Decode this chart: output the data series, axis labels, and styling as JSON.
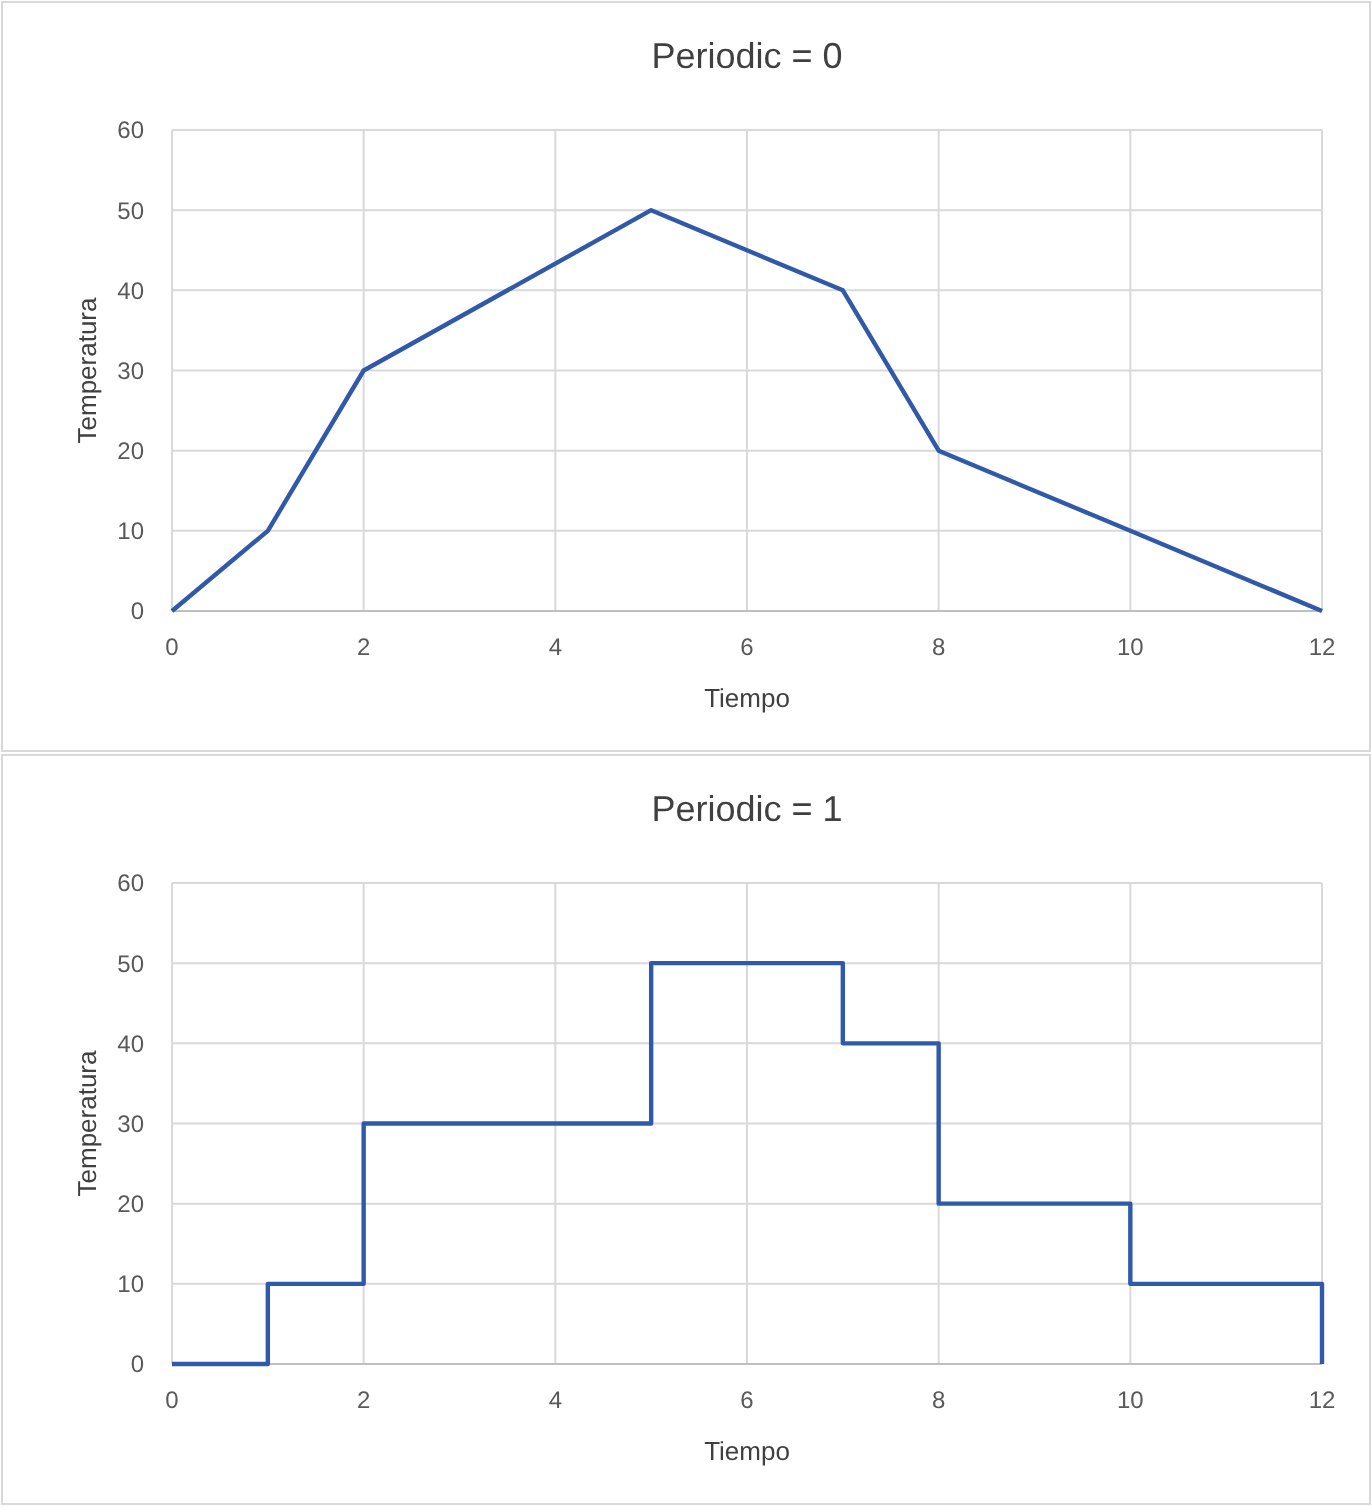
{
  "chart_data": [
    {
      "type": "line",
      "title": "Periodic = 0",
      "xlabel": "Tiempo",
      "ylabel": "Temperatura",
      "x": [
        0,
        1,
        2,
        5,
        7,
        8,
        10,
        12
      ],
      "series": [
        {
          "color": "#3059a9",
          "values": [
            0,
            10,
            30,
            50,
            40,
            20,
            10,
            0
          ]
        }
      ],
      "xlim": [
        0,
        12
      ],
      "ylim": [
        0,
        60
      ],
      "xticks": [
        0,
        2,
        4,
        6,
        8,
        10,
        12
      ],
      "yticks": [
        0,
        10,
        20,
        30,
        40,
        50,
        60
      ],
      "grid": true
    },
    {
      "type": "step",
      "title": "Periodic = 1",
      "xlabel": "Tiempo",
      "ylabel": "Temperatura",
      "x": [
        0,
        1,
        2,
        5,
        7,
        8,
        10,
        12
      ],
      "series": [
        {
          "color": "#3059a9",
          "values": [
            0,
            10,
            30,
            50,
            40,
            20,
            10,
            0
          ]
        }
      ],
      "xlim": [
        0,
        12
      ],
      "ylim": [
        0,
        60
      ],
      "xticks": [
        0,
        2,
        4,
        6,
        8,
        10,
        12
      ],
      "yticks": [
        0,
        10,
        20,
        30,
        40,
        50,
        60
      ],
      "grid": true
    }
  ]
}
